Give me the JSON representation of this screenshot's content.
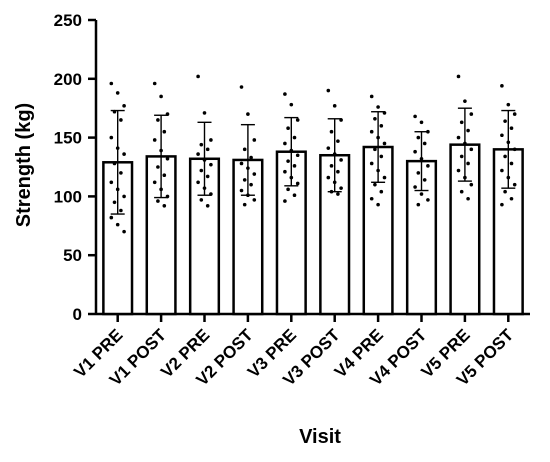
{
  "chart_data": {
    "type": "bar",
    "title": "",
    "xlabel": "Visit",
    "ylabel": "Strength (kg)",
    "ylim": [
      0,
      250
    ],
    "yticks": [
      0,
      50,
      100,
      150,
      200,
      250
    ],
    "grid": false,
    "error_bars": "mean ± SD",
    "categories": [
      "V1 PRE",
      "V1 POST",
      "V2 PRE",
      "V2 POST",
      "V3 PRE",
      "V3 POST",
      "V4 PRE",
      "V4 POST",
      "V5 PRE",
      "V5 POST"
    ],
    "series": [
      {
        "values": [
          129,
          134,
          132,
          131,
          138,
          135,
          142,
          130,
          144,
          140
        ],
        "sd": [
          44,
          35,
          31,
          30,
          29,
          31,
          30,
          25,
          31,
          33
        ],
        "points": [
          [
            196,
            188,
            177,
            172,
            165,
            150,
            141,
            136,
            128,
            120,
            112,
            106,
            100,
            95,
            88,
            82,
            76,
            70
          ],
          [
            196,
            185,
            170,
            165,
            155,
            148,
            139,
            132,
            125,
            118,
            112,
            106,
            100,
            96,
            92
          ],
          [
            202,
            171,
            148,
            144,
            140,
            136,
            131,
            127,
            122,
            117,
            112,
            107,
            102,
            97,
            92
          ],
          [
            193,
            170,
            148,
            140,
            133,
            128,
            124,
            119,
            114,
            110,
            105,
            101,
            97,
            93
          ],
          [
            187,
            178,
            165,
            158,
            150,
            145,
            139,
            135,
            130,
            126,
            121,
            116,
            111,
            106,
            101,
            96
          ],
          [
            190,
            177,
            165,
            155,
            147,
            141,
            136,
            131,
            126,
            121,
            116,
            112,
            107,
            104,
            102
          ],
          [
            185,
            176,
            171,
            166,
            160,
            155,
            150,
            145,
            140,
            134,
            128,
            122,
            116,
            110,
            104,
            98,
            93
          ],
          [
            168,
            163,
            155,
            150,
            145,
            138,
            132,
            126,
            120,
            114,
            108,
            102,
            97,
            93
          ],
          [
            202,
            181,
            170,
            163,
            156,
            150,
            145,
            140,
            134,
            128,
            122,
            116,
            110,
            104,
            98
          ],
          [
            194,
            178,
            170,
            164,
            158,
            152,
            146,
            140,
            134,
            128,
            122,
            116,
            110,
            104,
            98,
            93
          ]
        ]
      }
    ],
    "colors": {
      "bar_fill": "#ffffff",
      "bar_stroke": "#000000",
      "points": "#000000"
    }
  }
}
